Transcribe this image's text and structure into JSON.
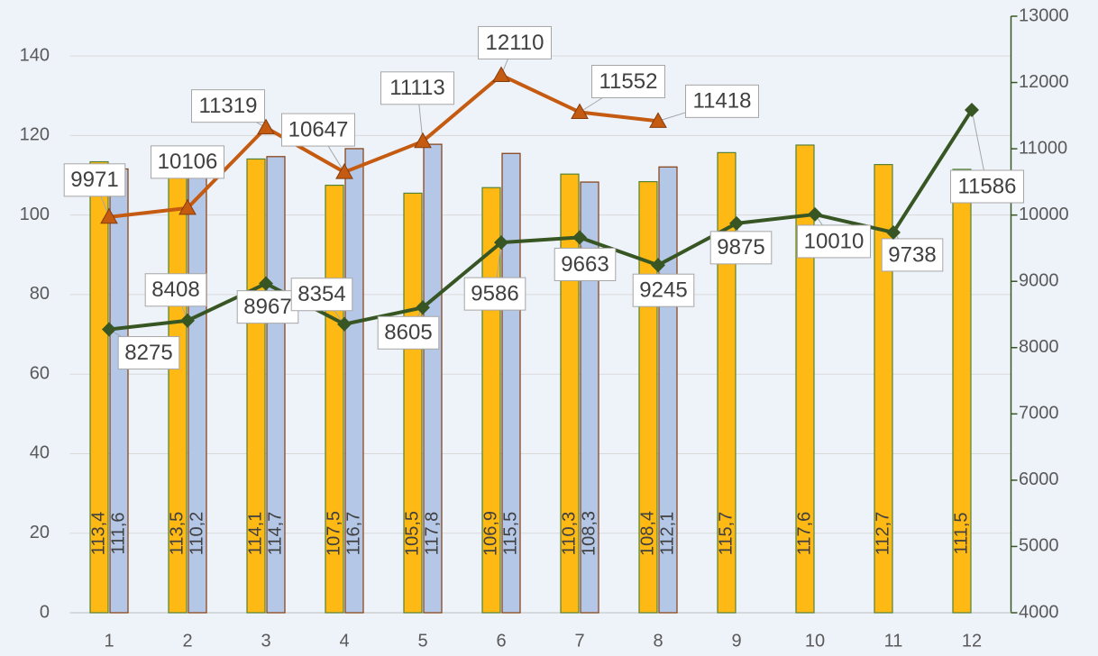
{
  "chart_data": {
    "type": "bar",
    "categories": [
      "1",
      "2",
      "3",
      "4",
      "5",
      "6",
      "7",
      "8",
      "9",
      "10",
      "11",
      "12"
    ],
    "ylim": [
      0,
      150
    ],
    "yticks": [
      0,
      20,
      40,
      60,
      80,
      100,
      120,
      140
    ],
    "y2lim": [
      4000,
      13000
    ],
    "y2ticks": [
      4000,
      5000,
      6000,
      7000,
      8000,
      9000,
      10000,
      11000,
      12000,
      13000
    ],
    "grid": true,
    "series": [
      {
        "type": "bar",
        "color": "#ffb914",
        "edge": "#548235",
        "values": [
          113.4,
          113.5,
          114.1,
          107.5,
          105.5,
          106.9,
          110.3,
          108.4,
          115.7,
          117.6,
          112.7,
          111.5
        ],
        "value_labels": [
          "113,4",
          "113,5",
          "114,1",
          "107,5",
          "105,5",
          "106,9",
          "110,3",
          "108,4",
          "115,7",
          "117,6",
          "112,7",
          "111,5"
        ]
      },
      {
        "type": "bar",
        "color": "#b4c7e7",
        "edge": "#843c0c",
        "values": [
          111.6,
          110.2,
          114.7,
          116.7,
          117.8,
          115.5,
          108.3,
          112.1,
          null,
          null,
          null,
          null
        ],
        "value_labels": [
          "111,6",
          "110,2",
          "114,7",
          "116,7",
          "117,8",
          "115,5",
          "108,3",
          "112,1",
          null,
          null,
          null,
          null
        ]
      },
      {
        "type": "line",
        "axis": "y2",
        "color": "#c55a11",
        "marker": "triangle",
        "values": [
          9971,
          10106,
          11319,
          10647,
          11113,
          12110,
          11552,
          11418,
          null,
          null,
          null,
          null
        ]
      },
      {
        "type": "line",
        "axis": "y2",
        "color": "#375623",
        "marker": "diamond",
        "values": [
          8275,
          8408,
          8967,
          8354,
          8605,
          9586,
          9663,
          9245,
          9875,
          10010,
          9738,
          11586
        ]
      }
    ]
  }
}
